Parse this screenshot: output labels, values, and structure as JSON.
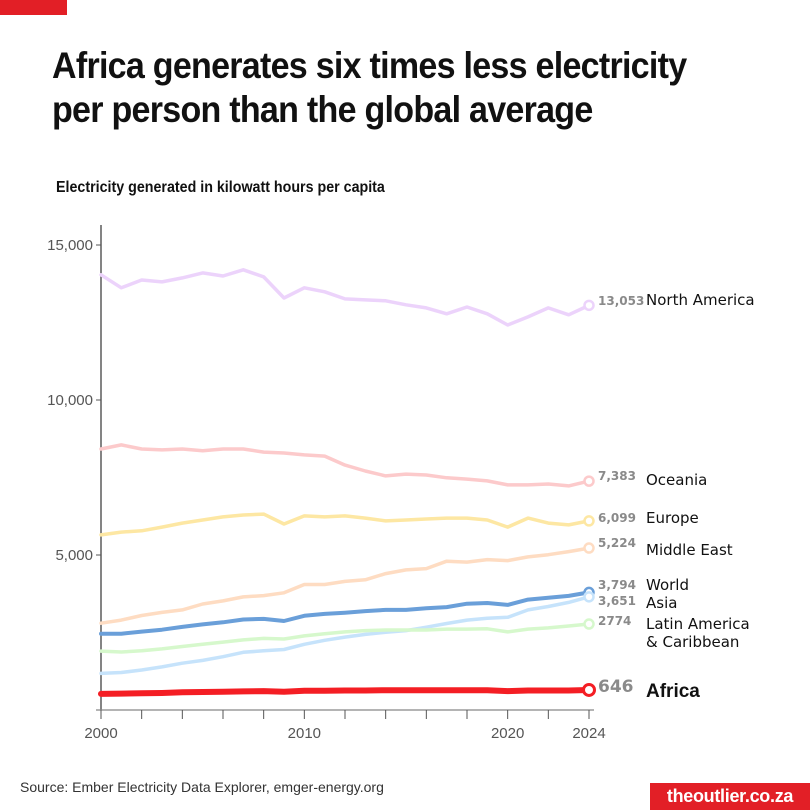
{
  "header": {
    "title": "Africa generates six times less electricity per person than the global average",
    "subtitle": "Electricity generated in kilowatt hours per capita"
  },
  "footer": {
    "source": "Source: Ember Electricity Data Explorer, emger-energy.org",
    "brand": "theoutlier.co.za"
  },
  "colors": {
    "accent": "#e21f26"
  },
  "chart_data": {
    "type": "line",
    "title": "Africa generates six times less electricity per person than the global average",
    "subtitle": "Electricity generated in kilowatt hours per capita",
    "xlabel": "",
    "ylabel": "Electricity generated in kilowatt hours per capita",
    "xlim": [
      2000,
      2024
    ],
    "ylim": [
      0,
      15000
    ],
    "x_ticks": [
      2000,
      2002,
      2004,
      2006,
      2008,
      2010,
      2012,
      2014,
      2016,
      2018,
      2020,
      2022,
      2024
    ],
    "x_tick_labels": [
      "2000",
      "2010",
      "2020",
      "2024"
    ],
    "x_tick_label_values": [
      2000,
      2010,
      2020,
      2024
    ],
    "y_ticks": [
      5000,
      10000,
      15000
    ],
    "y_tick_labels": [
      "5,000",
      "10,000",
      "15,000"
    ],
    "grid": false,
    "legend": "direct-labels-right",
    "x": [
      2000,
      2001,
      2002,
      2003,
      2004,
      2005,
      2006,
      2007,
      2008,
      2009,
      2010,
      2011,
      2012,
      2013,
      2014,
      2015,
      2016,
      2017,
      2018,
      2019,
      2020,
      2021,
      2022,
      2023,
      2024
    ],
    "series": [
      {
        "name": "North America",
        "color": "#ecd3fb",
        "end_label": "13,053",
        "label_style": "normal",
        "values": [
          14040,
          13620,
          13870,
          13810,
          13940,
          14100,
          14000,
          14200,
          13970,
          13290,
          13620,
          13490,
          13260,
          13230,
          13200,
          13070,
          12970,
          12780,
          13000,
          12780,
          12420,
          12680,
          12970,
          12750,
          13053
        ]
      },
      {
        "name": "Oceania",
        "color": "#fccacb",
        "end_label": "7,383",
        "label_style": "normal",
        "values": [
          8420,
          8550,
          8420,
          8390,
          8420,
          8360,
          8420,
          8420,
          8320,
          8290,
          8230,
          8190,
          7900,
          7710,
          7550,
          7610,
          7580,
          7490,
          7450,
          7390,
          7260,
          7260,
          7290,
          7230,
          7383
        ]
      },
      {
        "name": "Europe",
        "color": "#fde7a3",
        "end_label": "6,099",
        "label_style": "normal",
        "values": [
          5650,
          5740,
          5780,
          5900,
          6030,
          6130,
          6230,
          6290,
          6320,
          6000,
          6260,
          6230,
          6260,
          6190,
          6100,
          6130,
          6160,
          6190,
          6190,
          6130,
          5900,
          6190,
          6030,
          5970,
          6099
        ]
      },
      {
        "name": "Middle East",
        "color": "#fedcc2",
        "end_label": "5,224",
        "label_style": "normal",
        "values": [
          2800,
          2900,
          3050,
          3150,
          3230,
          3420,
          3520,
          3650,
          3690,
          3780,
          4050,
          4050,
          4150,
          4200,
          4400,
          4520,
          4560,
          4800,
          4770,
          4850,
          4820,
          4940,
          5010,
          5110,
          5224
        ]
      },
      {
        "name": "World",
        "color": "#6a9fd9",
        "end_label": "3,794",
        "label_style": "emphasis",
        "values": [
          2460,
          2460,
          2530,
          2590,
          2680,
          2760,
          2830,
          2920,
          2940,
          2870,
          3040,
          3100,
          3140,
          3190,
          3230,
          3230,
          3280,
          3320,
          3430,
          3450,
          3390,
          3560,
          3620,
          3680,
          3794
        ]
      },
      {
        "name": "Asia",
        "color": "#c6e3fb",
        "end_label": "3,651",
        "label_style": "normal",
        "values": [
          1180,
          1210,
          1290,
          1390,
          1510,
          1600,
          1720,
          1860,
          1910,
          1950,
          2120,
          2250,
          2350,
          2440,
          2510,
          2560,
          2670,
          2790,
          2900,
          2960,
          2990,
          3230,
          3340,
          3470,
          3651
        ]
      },
      {
        "name": "Latin America & Caribbean",
        "label_lines": [
          "Latin America",
          "& Caribbean"
        ],
        "color": "#d6f8cc",
        "end_label": "2774",
        "label_style": "normal",
        "values": [
          1900,
          1870,
          1910,
          1970,
          2050,
          2120,
          2190,
          2260,
          2310,
          2290,
          2390,
          2460,
          2520,
          2560,
          2580,
          2580,
          2580,
          2610,
          2610,
          2620,
          2520,
          2610,
          2650,
          2710,
          2774
        ]
      },
      {
        "name": "Africa",
        "color": "#f41e24",
        "end_label": "646",
        "label_style": "highlight",
        "values": [
          520,
          530,
          540,
          550,
          570,
          580,
          590,
          600,
          610,
          590,
          620,
          620,
          630,
          630,
          640,
          640,
          640,
          640,
          640,
          640,
          610,
          630,
          630,
          630,
          646
        ]
      }
    ]
  }
}
